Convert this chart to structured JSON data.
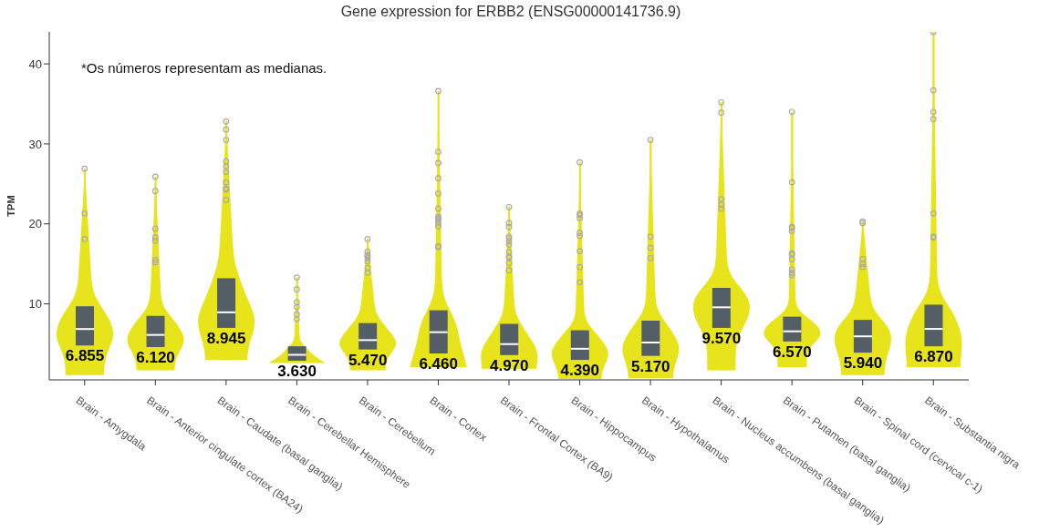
{
  "chart_data": {
    "type": "box",
    "title": "Gene expression for ERBB2 (ENSG00000141736.9)",
    "ylabel": "TPM",
    "annotations": [
      "*Os números representam as medianas."
    ],
    "categories": [
      "Brain - Amygdala",
      "Brain - Anterior cingulate cortex (BA24)",
      "Brain - Caudate (basal ganglia)",
      "Brain - Cerebellar Hemisphere",
      "Brain - Cerebellum",
      "Brain - Cortex",
      "Brain - Frontal Cortex (BA9)",
      "Brain - Hippocampus",
      "Brain - Hypothalamus",
      "Brain - Nucleus accumbens (basal ganglia)",
      "Brain - Putamen (basal ganglia)",
      "Brain - Spinal cord (cervical c-1)",
      "Brain - Substantia nigra"
    ],
    "boxes": [
      {
        "low": 1.1,
        "q1": 4.8,
        "median": 6.855,
        "q3": 9.7,
        "high": 26.9,
        "outliers": [
          26.9,
          21.3,
          18.1
        ]
      },
      {
        "low": 1.7,
        "q1": 4.6,
        "median": 6.12,
        "q3": 8.5,
        "high": 25.9,
        "outliers": [
          25.9,
          24.1,
          19.4,
          18.3,
          17.9,
          15.5,
          15.2
        ]
      },
      {
        "low": 3.0,
        "q1": 7.0,
        "median": 8.945,
        "q3": 13.2,
        "high": 32.8,
        "outliers": [
          32.8,
          31.8,
          30.5,
          27.8,
          27.2,
          26.5,
          25.2,
          24.4,
          24.3,
          23.0
        ]
      },
      {
        "low": 2.6,
        "q1": 2.9,
        "median": 3.63,
        "q3": 4.7,
        "high": 13.3,
        "outliers": [
          13.3,
          11.8,
          10.2,
          9.6,
          8.7,
          8.1
        ]
      },
      {
        "low": 1.7,
        "q1": 4.3,
        "median": 5.47,
        "q3": 7.6,
        "high": 18.1,
        "outliers": [
          18.1,
          16.5,
          16.1,
          16.0,
          15.7,
          15.3,
          14.5,
          13.9
        ]
      },
      {
        "low": 2.1,
        "q1": 3.8,
        "median": 6.46,
        "q3": 9.2,
        "high": 36.6,
        "outliers": [
          36.6,
          29.0,
          27.6,
          25.7,
          23.8,
          21.9,
          20.9,
          20.7,
          20.5,
          20.1,
          19.7,
          17.2,
          17.1
        ]
      },
      {
        "low": 1.9,
        "q1": 3.6,
        "median": 4.97,
        "q3": 7.5,
        "high": 22.1,
        "outliers": [
          22.1,
          20.1,
          19.6,
          18.4,
          18.2,
          17.8,
          17.4,
          16.5,
          15.9,
          15.8,
          15.1,
          14.2
        ]
      },
      {
        "low": 0.6,
        "q1": 3.0,
        "median": 4.39,
        "q3": 6.7,
        "high": 27.7,
        "outliers": [
          27.7,
          21.3,
          21.1,
          20.7,
          18.9,
          18.5,
          16.6,
          14.6,
          12.7
        ]
      },
      {
        "low": 0.7,
        "q1": 3.5,
        "median": 5.17,
        "q3": 7.9,
        "high": 30.5,
        "outliers": [
          30.5,
          18.4,
          17.0,
          15.7
        ]
      },
      {
        "low": 1.7,
        "q1": 7.0,
        "median": 9.57,
        "q3": 12.0,
        "high": 35.2,
        "outliers": [
          35.2,
          33.9,
          23.1,
          22.4,
          21.9
        ]
      },
      {
        "low": 2.1,
        "q1": 5.3,
        "median": 6.57,
        "q3": 8.4,
        "high": 34.0,
        "outliers": [
          34.0,
          25.2,
          19.6,
          19.5,
          19.1,
          16.3,
          16.2,
          15.6,
          14.3,
          13.9,
          13.6
        ]
      },
      {
        "low": 1.1,
        "q1": 3.9,
        "median": 5.94,
        "q3": 8.0,
        "high": 20.3,
        "outliers": [
          20.3,
          20.1,
          15.6,
          15.0,
          14.6
        ]
      },
      {
        "low": 2.1,
        "q1": 4.7,
        "median": 6.87,
        "q3": 9.9,
        "high": 44.0,
        "outliers": [
          44.0,
          36.7,
          34.0,
          33.1,
          21.3,
          18.4,
          18.3
        ]
      }
    ],
    "value_labels": [
      "6.855",
      "6.120",
      "8.945",
      "3.630",
      "5.470",
      "6.460",
      "4.970",
      "4.390",
      "5.170",
      "9.570",
      "6.570",
      "5.940",
      "6.870"
    ],
    "color": "#545e66",
    "ylim": [
      0.5,
      44
    ],
    "yticks": [
      10,
      20,
      30,
      40
    ]
  }
}
